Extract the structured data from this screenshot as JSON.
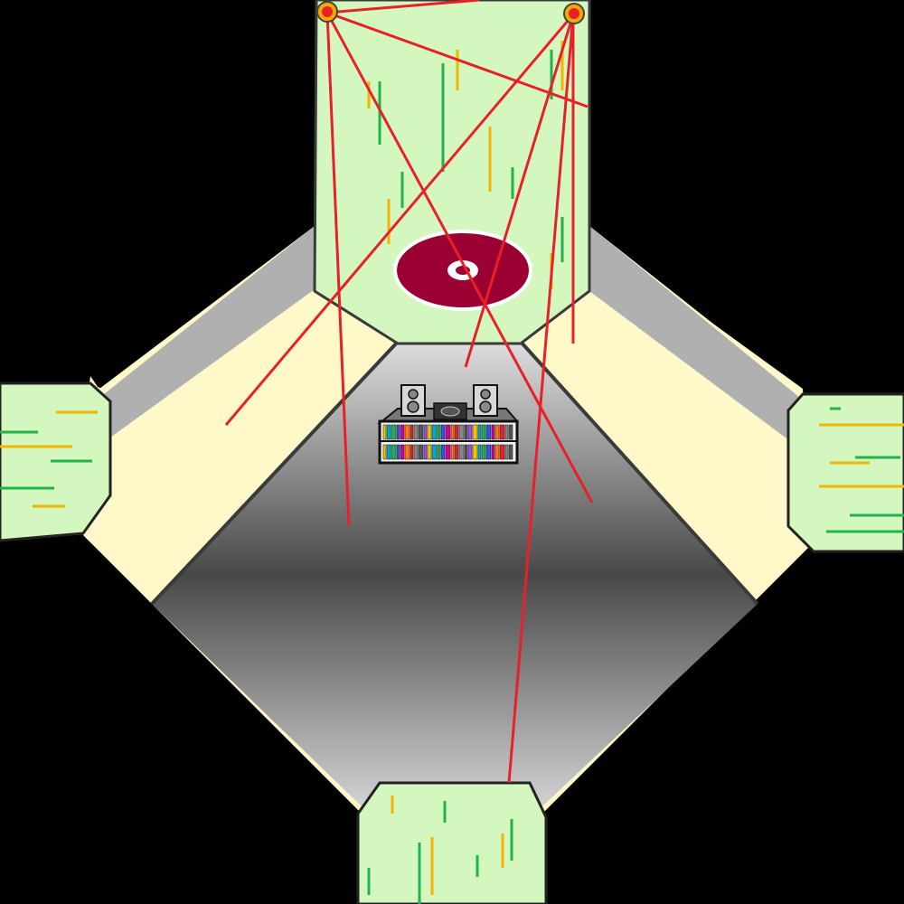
{
  "scene": {
    "type": "top-down game room",
    "background_color": "#000000",
    "floor_gradient": [
      "#dedede",
      "#484848",
      "#d2d2d2"
    ],
    "wall_color": "#b0b0b0",
    "carpet_color": "#fff8c8",
    "doorway_color": "#d4f7c0",
    "laser_color": "#e8202a",
    "target_color": "#9b0033"
  },
  "doorways": [
    {
      "name": "north-doorway",
      "side": "north"
    },
    {
      "name": "west-doorway",
      "side": "west"
    },
    {
      "name": "east-doorway",
      "side": "east"
    },
    {
      "name": "south-doorway",
      "side": "south"
    }
  ],
  "objects": {
    "laser_emitters": [
      {
        "name": "laser-emitter-left",
        "side": "north"
      },
      {
        "name": "laser-emitter-right",
        "side": "north"
      }
    ],
    "target_icon": "bullseye-target-icon",
    "furniture": "stereo-cd-shelf",
    "speakers": [
      "speaker-left-icon",
      "speaker-right-icon"
    ],
    "turntable_icon": "turntable-icon"
  }
}
